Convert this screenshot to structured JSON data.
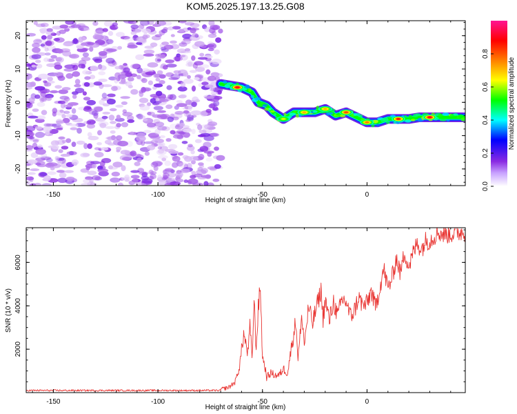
{
  "chart_data": [
    {
      "type": "heatmap",
      "title": "KOM5.2025.197.13.25.G08",
      "xlabel": "Height of straight line (km)",
      "ylabel": "Frequency (Hz)",
      "xlim": [
        -163,
        47
      ],
      "ylim": [
        -25,
        24.5
      ],
      "xticks": [
        -150,
        -100,
        -50,
        0
      ],
      "yticks": [
        -20,
        -10,
        0,
        10,
        20
      ],
      "colorbar": {
        "label": "Normalized spectral amplitude",
        "range": [
          0,
          1
        ],
        "ticks": [
          "0.0",
          "0.2",
          "0.4",
          "0.6",
          "0.8"
        ],
        "colormap": [
          "#ffffff",
          "#8a2be2",
          "#0000ff",
          "#00ffff",
          "#00ff00",
          "#ffff00",
          "#ff7f00",
          "#ff0000",
          "#ff1493"
        ]
      },
      "noise_region": {
        "x": [
          -163,
          -70
        ],
        "amplitude": [
          0.02,
          0.15
        ]
      },
      "ridge": [
        {
          "x": -70,
          "freq": 5.5
        },
        {
          "x": -65,
          "freq": 5
        },
        {
          "x": -60,
          "freq": 4.5
        },
        {
          "x": -55,
          "freq": 3
        },
        {
          "x": -52,
          "freq": 0
        },
        {
          "x": -48,
          "freq": -1
        },
        {
          "x": -45,
          "freq": -3
        },
        {
          "x": -40,
          "freq": -5
        },
        {
          "x": -35,
          "freq": -3
        },
        {
          "x": -30,
          "freq": -3
        },
        {
          "x": -25,
          "freq": -3
        },
        {
          "x": -20,
          "freq": -2
        },
        {
          "x": -15,
          "freq": -4
        },
        {
          "x": -10,
          "freq": -3
        },
        {
          "x": -5,
          "freq": -4.5
        },
        {
          "x": 0,
          "freq": -6
        },
        {
          "x": 5,
          "freq": -6
        },
        {
          "x": 10,
          "freq": -5
        },
        {
          "x": 15,
          "freq": -5
        },
        {
          "x": 20,
          "freq": -5
        },
        {
          "x": 25,
          "freq": -4.5
        },
        {
          "x": 30,
          "freq": -4.5
        },
        {
          "x": 35,
          "freq": -4.5
        },
        {
          "x": 40,
          "freq": -4.5
        },
        {
          "x": 47,
          "freq": -4.5
        }
      ],
      "ridge_peaks": [
        {
          "x": -62,
          "freq": 4.5,
          "amp": 0.9
        },
        {
          "x": -40,
          "freq": -5,
          "amp": 0.6
        },
        {
          "x": -30,
          "freq": -3,
          "amp": 0.7
        },
        {
          "x": -20,
          "freq": -2,
          "amp": 0.7
        },
        {
          "x": -10,
          "freq": -3,
          "amp": 0.8
        },
        {
          "x": 0,
          "freq": -6,
          "amp": 0.75
        },
        {
          "x": 15,
          "freq": -5,
          "amp": 0.85
        },
        {
          "x": 30,
          "freq": -4.5,
          "amp": 0.9
        }
      ]
    },
    {
      "type": "line",
      "title": "",
      "xlabel": "Height of straight line (km)",
      "ylabel": "SNR (10 * v/v)",
      "xlim": [
        -163,
        47
      ],
      "ylim": [
        0,
        7600
      ],
      "xticks": [
        -150,
        -100,
        -50,
        0
      ],
      "yticks": [
        2000,
        4000,
        6000
      ],
      "series": [
        {
          "color": "#e8322f",
          "baseline": [
            {
              "x": -163,
              "y": 100
            },
            {
              "x": -70,
              "y": 100
            }
          ],
          "x": [
            -70,
            -66,
            -63,
            -61,
            -59,
            -57,
            -56,
            -55,
            -54,
            -53,
            -52,
            -51,
            -50,
            -49,
            -48,
            -46,
            -44,
            -42,
            -40,
            -38,
            -36,
            -34,
            -33,
            -32,
            -31,
            -30,
            -28,
            -26,
            -24,
            -22,
            -21,
            -20,
            -18,
            -16,
            -14,
            -12,
            -10,
            -8,
            -6,
            -4,
            -2,
            0,
            2,
            4,
            6,
            8,
            10,
            12,
            14,
            16,
            18,
            20,
            22,
            24,
            26,
            28,
            30,
            32,
            34,
            36,
            40,
            44,
            47
          ],
          "values": [
            150,
            250,
            500,
            1200,
            2700,
            1800,
            3000,
            1600,
            4200,
            2000,
            3900,
            4900,
            1600,
            1300,
            700,
            900,
            800,
            800,
            1100,
            900,
            2200,
            3300,
            1600,
            2600,
            3500,
            2200,
            3900,
            3200,
            4000,
            4700,
            3400,
            4300,
            3300,
            4200,
            3500,
            4300,
            4200,
            3500,
            3800,
            4400,
            4000,
            4100,
            4700,
            3900,
            4800,
            5700,
            4800,
            5300,
            6200,
            5500,
            6500,
            5800,
            6400,
            6900,
            6600,
            7000,
            7000,
            7200,
            7400,
            7300,
            7300,
            7400,
            7400
          ]
        }
      ]
    }
  ]
}
